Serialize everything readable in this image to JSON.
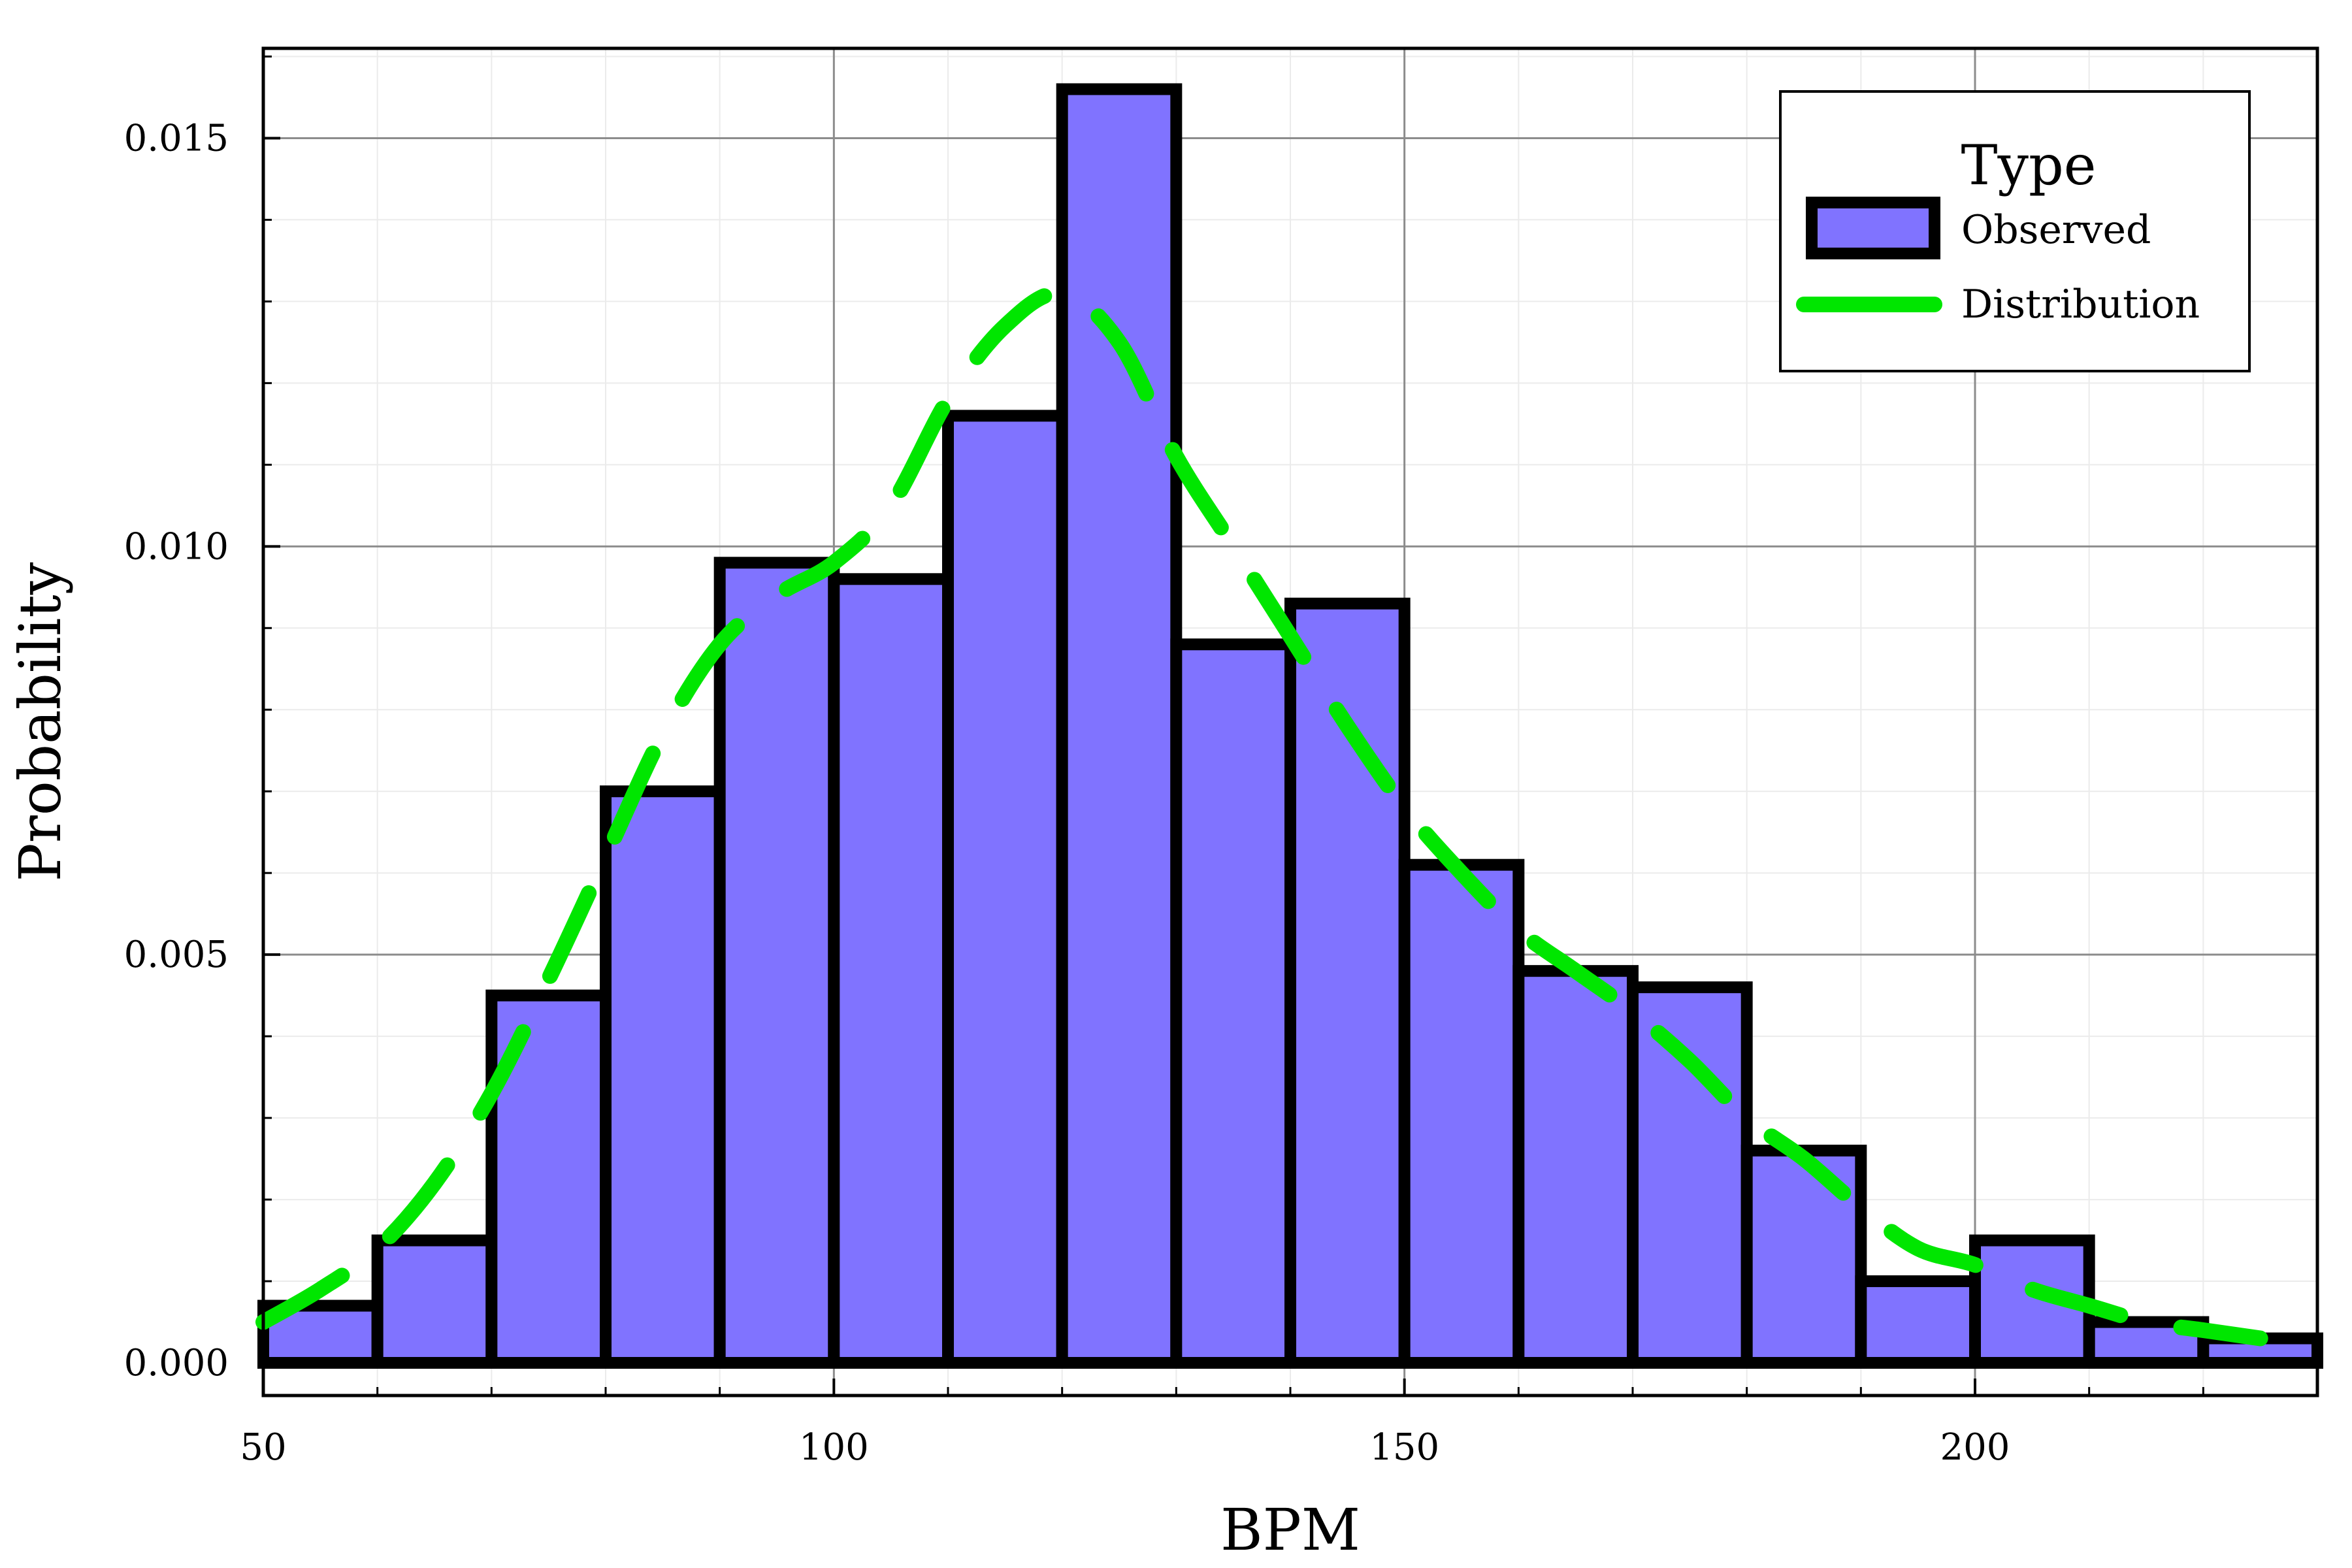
{
  "chart_data": {
    "type": "bar",
    "xlabel": "BPM",
    "ylabel": "Probability",
    "xlim": [
      50,
      230
    ],
    "ylim": [
      -0.0004,
      0.0161
    ],
    "xticks": [
      50,
      100,
      150,
      200
    ],
    "xtick_labels": [
      "50",
      "100",
      "150",
      "200"
    ],
    "yticks": [
      0.0,
      0.005,
      0.01,
      0.015
    ],
    "ytick_labels": [
      "0.000",
      "0.005",
      "0.010",
      "0.015"
    ],
    "grid": true,
    "legend": {
      "title": "Type",
      "placement": "top-right"
    },
    "series": [
      {
        "name": "Observed",
        "type": "histogram",
        "color": "#8073ff",
        "edge_color": "#000000",
        "bin_edges": [
          50,
          60,
          70,
          80,
          90,
          100,
          110,
          120,
          130,
          140,
          150,
          160,
          170,
          180,
          190,
          200,
          210,
          220,
          230
        ],
        "values": [
          0.0007,
          0.0015,
          0.0045,
          0.007,
          0.0098,
          0.0096,
          0.0116,
          0.0156,
          0.0088,
          0.0093,
          0.0061,
          0.0048,
          0.0046,
          0.0026,
          0.001,
          0.0015,
          0.0005,
          0.0003
        ]
      },
      {
        "name": "Distribution",
        "type": "line",
        "style": "dashed",
        "color": "#00e600",
        "x": [
          50,
          55,
          60,
          65,
          70,
          75,
          80,
          85,
          90,
          95,
          100,
          105,
          110,
          115,
          120,
          125,
          130,
          135,
          140,
          145,
          150,
          155,
          160,
          165,
          170,
          175,
          180,
          185,
          190,
          195,
          200,
          205,
          210,
          215,
          220,
          225
        ],
        "values": [
          0.0005,
          0.0009,
          0.0014,
          0.0022,
          0.0033,
          0.0047,
          0.0062,
          0.0077,
          0.0088,
          0.0094,
          0.0098,
          0.0105,
          0.0118,
          0.0127,
          0.0131,
          0.0125,
          0.0111,
          0.01,
          0.0089,
          0.0078,
          0.0068,
          0.006,
          0.0053,
          0.0048,
          0.0043,
          0.0037,
          0.003,
          0.0025,
          0.0019,
          0.0014,
          0.0012,
          0.0009,
          0.0007,
          0.0005,
          0.0004,
          0.0003
        ]
      }
    ]
  }
}
